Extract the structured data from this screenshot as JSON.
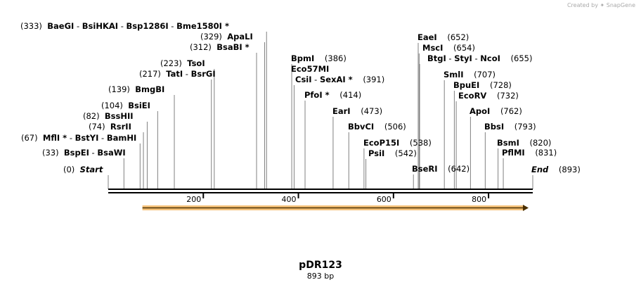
{
  "credit": "Created by ✦ SnapGene",
  "map": {
    "title": "pDR123",
    "length_label": "893 bp",
    "total_bp": 893,
    "ticks": [
      "200",
      "400",
      "600",
      "800"
    ],
    "tick_values": [
      200,
      400,
      600,
      800
    ],
    "feature": {
      "color": "#f5c27a",
      "start": 100,
      "end": 893
    }
  },
  "sites": [
    {
      "pos": "(0)",
      "bp": 0,
      "parts": [
        {
          "t": "Start",
          "i": true
        }
      ],
      "side": "right"
    },
    {
      "pos": "(33)",
      "bp": 33,
      "parts": [
        {
          "t": "BspEI"
        },
        {
          "t": " - ",
          "sep": true
        },
        {
          "t": "BsaWI"
        }
      ],
      "side": "left"
    },
    {
      "pos": "(67)",
      "bp": 67,
      "parts": [
        {
          "t": "MflI *"
        },
        {
          "t": " - ",
          "sep": true
        },
        {
          "t": "BstYI"
        },
        {
          "t": " - ",
          "sep": true
        },
        {
          "t": "BamHI"
        }
      ],
      "side": "left"
    },
    {
      "pos": "(74)",
      "bp": 74,
      "parts": [
        {
          "t": "RsrII"
        }
      ],
      "side": "left"
    },
    {
      "pos": "(82)",
      "bp": 82,
      "parts": [
        {
          "t": "BssHII"
        }
      ],
      "side": "left"
    },
    {
      "pos": "(104)",
      "bp": 104,
      "parts": [
        {
          "t": "BsiEI"
        }
      ],
      "side": "left"
    },
    {
      "pos": "(139)",
      "bp": 139,
      "parts": [
        {
          "t": "BmgBI"
        }
      ],
      "side": "left"
    },
    {
      "pos": "(217)",
      "bp": 217,
      "parts": [
        {
          "t": "TatI"
        },
        {
          "t": " - ",
          "sep": true
        },
        {
          "t": "BsrGI"
        }
      ],
      "side": "left"
    },
    {
      "pos": "(223)",
      "bp": 223,
      "parts": [
        {
          "t": "TsoI"
        }
      ],
      "side": "left"
    },
    {
      "pos": "(312)",
      "bp": 312,
      "parts": [
        {
          "t": "BsaBI *"
        }
      ],
      "side": "left"
    },
    {
      "pos": "(329)",
      "bp": 329,
      "parts": [
        {
          "t": "ApaLI"
        }
      ],
      "side": "left"
    },
    {
      "pos": "(333)",
      "bp": 333,
      "parts": [
        {
          "t": "BaeGI"
        },
        {
          "t": " - ",
          "sep": true
        },
        {
          "t": "BsiHKAI"
        },
        {
          "t": " - ",
          "sep": true
        },
        {
          "t": "Bsp1286I"
        },
        {
          "t": " - ",
          "sep": true
        },
        {
          "t": "Bme1580I *"
        }
      ],
      "side": "left"
    },
    {
      "pos": "(386)",
      "bp": 386,
      "parts": [
        {
          "t": "BpmI"
        }
      ],
      "side": "right"
    },
    {
      "pos": "",
      "bp": 386,
      "parts": [
        {
          "t": "Eco57MI"
        }
      ],
      "side": "right"
    },
    {
      "pos": "(391)",
      "bp": 391,
      "parts": [
        {
          "t": "CsiI"
        },
        {
          "t": " - ",
          "sep": true
        },
        {
          "t": "SexAI *"
        }
      ],
      "side": "right"
    },
    {
      "pos": "(414)",
      "bp": 414,
      "parts": [
        {
          "t": "PfoI *"
        }
      ],
      "side": "right"
    },
    {
      "pos": "(473)",
      "bp": 473,
      "parts": [
        {
          "t": "EarI"
        }
      ],
      "side": "right"
    },
    {
      "pos": "(506)",
      "bp": 506,
      "parts": [
        {
          "t": "BbvCI"
        }
      ],
      "side": "right"
    },
    {
      "pos": "(538)",
      "bp": 538,
      "parts": [
        {
          "t": "EcoP15I"
        }
      ],
      "side": "right"
    },
    {
      "pos": "(542)",
      "bp": 542,
      "parts": [
        {
          "t": "PsiI"
        }
      ],
      "side": "right"
    },
    {
      "pos": "(642)",
      "bp": 642,
      "parts": [
        {
          "t": "BseRI"
        }
      ],
      "side": "right"
    },
    {
      "pos": "(652)",
      "bp": 652,
      "parts": [
        {
          "t": "EaeI"
        }
      ],
      "side": "right"
    },
    {
      "pos": "(654)",
      "bp": 654,
      "parts": [
        {
          "t": "MscI"
        }
      ],
      "side": "right"
    },
    {
      "pos": "(655)",
      "bp": 655,
      "parts": [
        {
          "t": "BtgI"
        },
        {
          "t": " - ",
          "sep": true
        },
        {
          "t": "StyI"
        },
        {
          "t": " - ",
          "sep": true
        },
        {
          "t": "NcoI"
        }
      ],
      "side": "right"
    },
    {
      "pos": "(707)",
      "bp": 707,
      "parts": [
        {
          "t": "SmlI"
        }
      ],
      "side": "right"
    },
    {
      "pos": "(728)",
      "bp": 728,
      "parts": [
        {
          "t": "BpuEI"
        }
      ],
      "side": "right"
    },
    {
      "pos": "(732)",
      "bp": 732,
      "parts": [
        {
          "t": "EcoRV"
        }
      ],
      "side": "right"
    },
    {
      "pos": "(762)",
      "bp": 762,
      "parts": [
        {
          "t": "ApoI"
        }
      ],
      "side": "right"
    },
    {
      "pos": "(793)",
      "bp": 793,
      "parts": [
        {
          "t": "BbsI"
        }
      ],
      "side": "right"
    },
    {
      "pos": "(820)",
      "bp": 820,
      "parts": [
        {
          "t": "BsmI"
        }
      ],
      "side": "right"
    },
    {
      "pos": "(831)",
      "bp": 831,
      "parts": [
        {
          "t": "PflMI"
        }
      ],
      "side": "right"
    },
    {
      "pos": "(893)",
      "bp": 893,
      "parts": [
        {
          "t": "End",
          "i": true
        }
      ],
      "side": "right"
    }
  ]
}
